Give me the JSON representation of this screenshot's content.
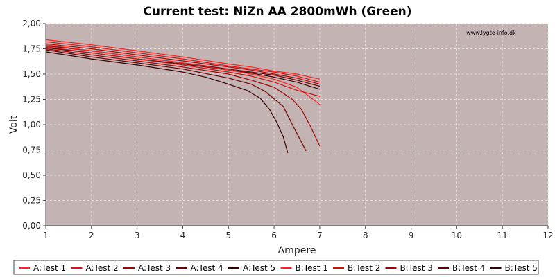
{
  "chart_data": {
    "type": "line",
    "title": "Current test: NiZn AA 2800mWh (Green)",
    "watermark": "www.lygte-info.dk",
    "xlabel": "Ampere",
    "ylabel": "Volt",
    "xlim": [
      1,
      12
    ],
    "ylim": [
      0,
      2
    ],
    "x_ticks": [
      "1",
      "2",
      "3",
      "4",
      "5",
      "6",
      "7",
      "8",
      "9",
      "10",
      "11",
      "12"
    ],
    "y_ticks": [
      "0,00",
      "0,25",
      "0,50",
      "0,75",
      "1,00",
      "1,25",
      "1,50",
      "1,75",
      "2,00"
    ],
    "grid": true,
    "legend_position": "bottom",
    "plot_background": "#c4b3b3",
    "series": [
      {
        "name": "A:Test 1",
        "color": "#ff2020",
        "points": [
          [
            1,
            1.84
          ],
          [
            2,
            1.79
          ],
          [
            3,
            1.73
          ],
          [
            4,
            1.67
          ],
          [
            5,
            1.6
          ],
          [
            5.5,
            1.57
          ],
          [
            6,
            1.53
          ],
          [
            6.5,
            1.5
          ],
          [
            7,
            1.45
          ]
        ]
      },
      {
        "name": "A:Test 2",
        "color": "#e01010",
        "points": [
          [
            1,
            1.82
          ],
          [
            2,
            1.77
          ],
          [
            3,
            1.71
          ],
          [
            4,
            1.65
          ],
          [
            5,
            1.58
          ],
          [
            5.5,
            1.55
          ],
          [
            6,
            1.52
          ],
          [
            6.5,
            1.48
          ],
          [
            7,
            1.42
          ]
        ]
      },
      {
        "name": "A:Test 3",
        "color": "#b00000",
        "points": [
          [
            1,
            1.8
          ],
          [
            2,
            1.75
          ],
          [
            3,
            1.69
          ],
          [
            4,
            1.63
          ],
          [
            5,
            1.57
          ],
          [
            5.5,
            1.54
          ],
          [
            6,
            1.5
          ],
          [
            6.5,
            1.46
          ],
          [
            7,
            1.4
          ]
        ]
      },
      {
        "name": "A:Test 4",
        "color": "#700000",
        "points": [
          [
            1,
            1.78
          ],
          [
            2,
            1.73
          ],
          [
            3,
            1.67
          ],
          [
            4,
            1.61
          ],
          [
            5,
            1.55
          ],
          [
            5.5,
            1.52
          ],
          [
            6,
            1.49
          ],
          [
            6.5,
            1.44
          ],
          [
            7,
            1.38
          ]
        ]
      },
      {
        "name": "A:Test 5",
        "color": "#400000",
        "points": [
          [
            1,
            1.76
          ],
          [
            2,
            1.71
          ],
          [
            3,
            1.65
          ],
          [
            4,
            1.6
          ],
          [
            5,
            1.54
          ],
          [
            5.5,
            1.51
          ],
          [
            6,
            1.47
          ],
          [
            6.5,
            1.42
          ],
          [
            7,
            1.35
          ]
        ]
      },
      {
        "name": "B:Test 1",
        "color": "#ff2020",
        "points": [
          [
            1,
            1.79
          ],
          [
            2,
            1.73
          ],
          [
            3,
            1.67
          ],
          [
            4,
            1.61
          ],
          [
            5,
            1.54
          ],
          [
            5.5,
            1.5
          ],
          [
            6,
            1.45
          ],
          [
            6.5,
            1.37
          ],
          [
            7,
            1.2
          ]
        ]
      },
      {
        "name": "B:Test 2",
        "color": "#d01010",
        "points": [
          [
            1,
            1.77
          ],
          [
            2,
            1.71
          ],
          [
            3,
            1.65
          ],
          [
            4,
            1.59
          ],
          [
            5,
            1.52
          ],
          [
            5.5,
            1.48
          ],
          [
            6,
            1.42
          ],
          [
            6.5,
            1.34
          ],
          [
            7,
            1.28
          ]
        ]
      },
      {
        "name": "B:Test 3",
        "color": "#a00000",
        "points": [
          [
            1,
            1.75
          ],
          [
            2,
            1.69
          ],
          [
            3,
            1.63
          ],
          [
            4,
            1.57
          ],
          [
            5,
            1.5
          ],
          [
            5.5,
            1.44
          ],
          [
            6,
            1.37
          ],
          [
            6.4,
            1.25
          ],
          [
            6.6,
            1.15
          ],
          [
            6.8,
            0.98
          ],
          [
            7,
            0.79
          ]
        ]
      },
      {
        "name": "B:Test 4",
        "color": "#680000",
        "points": [
          [
            1,
            1.74
          ],
          [
            2,
            1.67
          ],
          [
            3,
            1.61
          ],
          [
            4,
            1.55
          ],
          [
            5,
            1.46
          ],
          [
            5.5,
            1.4
          ],
          [
            5.8,
            1.33
          ],
          [
            6.2,
            1.18
          ],
          [
            6.4,
            1.0
          ],
          [
            6.55,
            0.87
          ],
          [
            6.7,
            0.74
          ]
        ]
      },
      {
        "name": "B:Test 5",
        "color": "#380000",
        "points": [
          [
            1,
            1.72
          ],
          [
            2,
            1.65
          ],
          [
            3,
            1.59
          ],
          [
            4,
            1.52
          ],
          [
            4.5,
            1.47
          ],
          [
            5,
            1.4
          ],
          [
            5.4,
            1.34
          ],
          [
            5.7,
            1.26
          ],
          [
            5.9,
            1.15
          ],
          [
            6.05,
            1.03
          ],
          [
            6.2,
            0.88
          ],
          [
            6.3,
            0.72
          ]
        ]
      }
    ]
  }
}
